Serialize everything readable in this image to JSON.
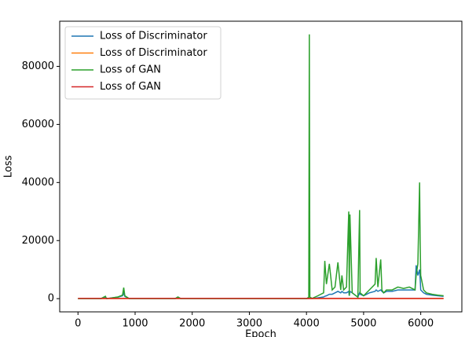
{
  "chart_data": {
    "type": "line",
    "xlabel": "Epoch",
    "ylabel": "Loss",
    "x": [
      0,
      200,
      400,
      480,
      500,
      600,
      700,
      780,
      800,
      820,
      900,
      1000,
      1200,
      1400,
      1700,
      1750,
      1800,
      2000,
      2500,
      3000,
      3500,
      4000,
      4040,
      4050,
      4060,
      4100,
      4200,
      4300,
      4320,
      4350,
      4400,
      4450,
      4500,
      4550,
      4600,
      4620,
      4650,
      4700,
      4740,
      4750,
      4760,
      4800,
      4900,
      4930,
      4940,
      5000,
      5100,
      5200,
      5220,
      5250,
      5300,
      5320,
      5350,
      5400,
      5500,
      5600,
      5700,
      5800,
      5900,
      5920,
      5950,
      5980,
      5990,
      6000,
      6050,
      6100,
      6200,
      6300,
      6400
    ],
    "series": [
      {
        "name": "Loss of Discriminator",
        "color": "#1f77b4",
        "values": [
          0,
          0,
          0,
          600,
          0,
          300,
          500,
          1000,
          2000,
          800,
          0,
          0,
          0,
          0,
          0,
          500,
          0,
          0,
          0,
          0,
          0,
          0,
          0,
          0,
          0,
          0,
          300,
          600,
          800,
          1000,
          1500,
          1500,
          2000,
          2500,
          2000,
          2500,
          2000,
          2000,
          2500,
          1000,
          2500,
          2000,
          500,
          2000,
          1500,
          1000,
          2000,
          2500,
          3000,
          2500,
          3000,
          2500,
          2000,
          2500,
          2500,
          3000,
          3000,
          3000,
          3000,
          11500,
          8000,
          10000,
          7000,
          3000,
          2000,
          1500,
          1200,
          1000,
          800
        ]
      },
      {
        "name": "Loss of Discriminator",
        "color": "#ff7f0e",
        "values": [
          20,
          20,
          20,
          20,
          20,
          20,
          20,
          20,
          20,
          20,
          20,
          20,
          20,
          20,
          20,
          20,
          20,
          20,
          20,
          20,
          20,
          20,
          20,
          20,
          20,
          20,
          20,
          20,
          20,
          20,
          20,
          20,
          20,
          20,
          20,
          20,
          20,
          20,
          20,
          20,
          20,
          20,
          20,
          20,
          20,
          20,
          20,
          20,
          20,
          20,
          20,
          20,
          20,
          20,
          20,
          20,
          20,
          20,
          20,
          20,
          20,
          20,
          20,
          20,
          20,
          20,
          20,
          20,
          20
        ]
      },
      {
        "name": "Loss of GAN",
        "color": "#2ca02c",
        "values": [
          0,
          0,
          0,
          800,
          0,
          300,
          600,
          1200,
          3800,
          1000,
          0,
          0,
          0,
          0,
          0,
          600,
          0,
          0,
          0,
          0,
          0,
          0,
          500,
          91000,
          500,
          100,
          1000,
          2000,
          13000,
          5000,
          12000,
          3000,
          4000,
          12500,
          3000,
          8000,
          3000,
          4000,
          30000,
          1000,
          29000,
          2000,
          500,
          30500,
          2000,
          1000,
          3000,
          5000,
          14000,
          4000,
          13500,
          3000,
          2000,
          3000,
          3000,
          4000,
          3500,
          4000,
          3000,
          8000,
          12000,
          40000,
          20000,
          8000,
          3000,
          2000,
          1500,
          1200,
          1000
        ]
      },
      {
        "name": "Loss of GAN",
        "color": "#d62728",
        "values": [
          80,
          80,
          80,
          80,
          80,
          80,
          80,
          80,
          80,
          80,
          80,
          80,
          80,
          80,
          80,
          80,
          80,
          80,
          80,
          80,
          80,
          80,
          80,
          80,
          80,
          80,
          80,
          80,
          80,
          80,
          80,
          80,
          80,
          80,
          80,
          80,
          80,
          80,
          80,
          80,
          80,
          80,
          80,
          80,
          80,
          80,
          80,
          80,
          80,
          80,
          80,
          80,
          80,
          80,
          80,
          80,
          80,
          80,
          80,
          80,
          80,
          80,
          80,
          80,
          80,
          80,
          80,
          80,
          80
        ]
      }
    ],
    "xlim": [
      -320,
      6720
    ],
    "xticks": [
      0,
      1000,
      2000,
      3000,
      4000,
      5000,
      6000
    ],
    "ylim": [
      -4550,
      95550
    ],
    "yticks": [
      0,
      20000,
      40000,
      60000,
      80000
    ],
    "legend": "upper left"
  }
}
